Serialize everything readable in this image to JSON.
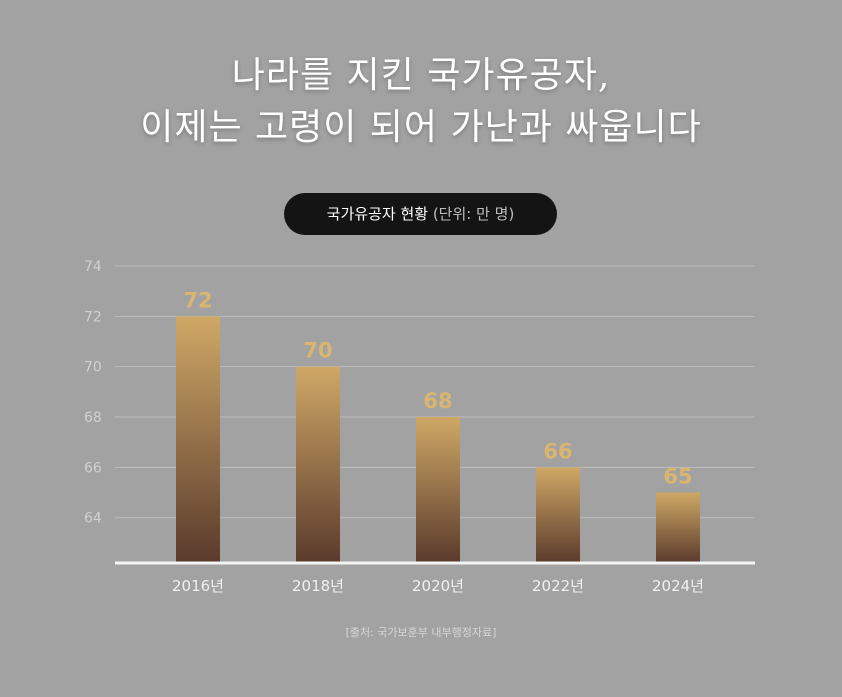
{
  "title": {
    "line1": "나라를 지킨 국가유공자,",
    "line2": "이제는 고령이 되어 가난과 싸웁니다"
  },
  "colors": {
    "background": "#a2a2a2",
    "bar_top": "#cfa866",
    "bar_bottom": "#5a3a2c",
    "value_label": "#d9b56f",
    "pill_background": "#141414"
  },
  "chart_data": {
    "type": "bar",
    "title": "국가유공자 현황",
    "unit_label": "(단위: 만 명)",
    "categories": [
      "2016년",
      "2018년",
      "2020년",
      "2022년",
      "2024년"
    ],
    "values": [
      72,
      70,
      68,
      66,
      65
    ],
    "value_labels": [
      "72",
      "70",
      "68",
      "66",
      "65"
    ],
    "y_ticks": [
      64,
      66,
      68,
      70,
      72,
      74
    ],
    "y_tick_labels": [
      "64",
      "66",
      "68",
      "70",
      "72",
      "74"
    ],
    "ylim": [
      62.2,
      74
    ],
    "xlabel": "",
    "ylabel": "",
    "grid": true,
    "legend": "none"
  },
  "source": "[출처: 국가보훈부 내부행정자료]"
}
